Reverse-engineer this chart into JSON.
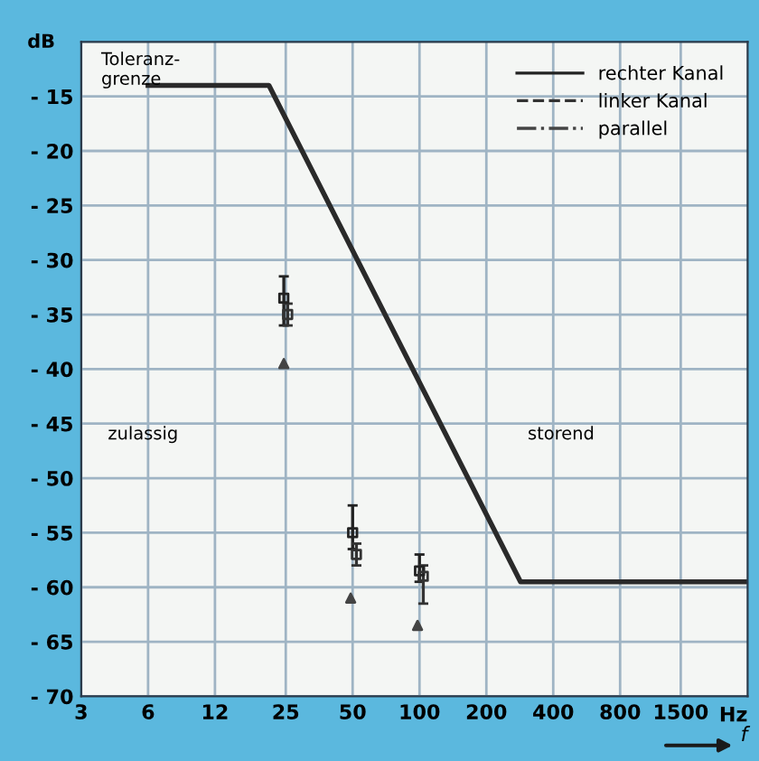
{
  "chart_data": {
    "type": "scatter",
    "xlabel": "f",
    "ylabel": "dB",
    "log": "x",
    "xlim": [
      3,
      3000
    ],
    "xticks": [
      3,
      6,
      12,
      25,
      50,
      100,
      200,
      400,
      800,
      1500
    ],
    "ylim": [
      -70,
      -10
    ],
    "yticks": [
      {
        "value": -15,
        "label": "- 15"
      },
      {
        "value": -20,
        "label": "- 20"
      },
      {
        "value": -25,
        "label": "- 25"
      },
      {
        "value": -30,
        "label": "- 30"
      },
      {
        "value": -35,
        "label": "- 35"
      },
      {
        "value": -40,
        "label": "- 40"
      },
      {
        "value": -45,
        "label": "- 45"
      },
      {
        "value": -50,
        "label": "- 50"
      },
      {
        "value": -55,
        "label": "- 55"
      },
      {
        "value": -60,
        "label": "- 60"
      },
      {
        "value": -65,
        "label": "- 65"
      },
      {
        "value": -70,
        "label": "- 70"
      }
    ],
    "grid": true,
    "legend": "top right",
    "series": [
      {
        "type": "line",
        "color": "#2a2a2a",
        "line_style": "solid",
        "marker": "none",
        "x": [
          6,
          21,
          285,
          3000
        ],
        "values": [
          -14,
          -14,
          -59.5,
          -59.5
        ]
      },
      {
        "name": "rechter Kanal",
        "color": "#222222",
        "line_style": "solid",
        "marker": "square",
        "x": [
          24.5,
          50,
          100
        ],
        "values": [
          -33.5,
          -55,
          -58.5
        ],
        "errors": [
          [
            -36,
            -31.5
          ],
          [
            -56.5,
            -52.5
          ],
          [
            -59.5,
            -57
          ]
        ]
      },
      {
        "name": "linker Kanal",
        "color": "#333333",
        "line_style": "dashed",
        "marker": "square",
        "x": [
          25.5,
          52,
          104
        ],
        "values": [
          -35,
          -57,
          -59
        ],
        "errors": [
          [
            -36,
            -34
          ],
          [
            -58,
            -56
          ],
          [
            -61.5,
            -58
          ]
        ]
      },
      {
        "name": "parallel",
        "color": "#444444",
        "line_style": "dashdot",
        "marker": "triangle",
        "x": [
          24.5,
          49,
          98
        ],
        "values": [
          -39.5,
          -61,
          -63.5
        ]
      }
    ],
    "annotations": [
      "Toleranz-\ngrenze",
      "zulassig",
      "storend",
      "Hz"
    ]
  }
}
